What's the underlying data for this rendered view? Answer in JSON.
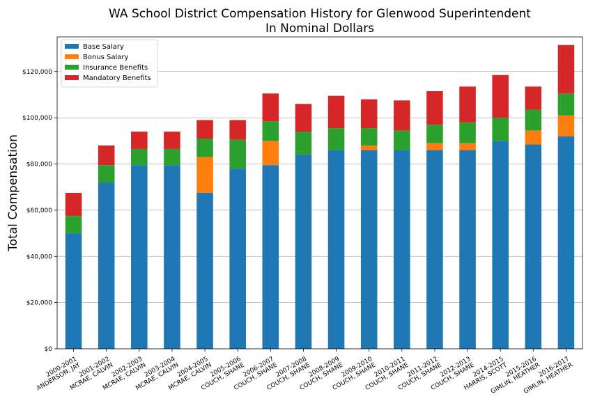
{
  "chart_data": {
    "type": "bar",
    "stacked": true,
    "title": "WA School District Compensation History for Glenwood Superintendent",
    "subtitle": "In Nominal Dollars",
    "xlabel": "",
    "ylabel": "Total Compensation",
    "ylim": [
      0,
      135000
    ],
    "yticks": [
      0,
      20000,
      40000,
      60000,
      80000,
      100000,
      120000
    ],
    "ytick_labels": [
      "$0",
      "$20,000",
      "$40,000",
      "$60,000",
      "$80,000",
      "$100,000",
      "$120,000"
    ],
    "grid": "horizontal",
    "legend_position": "top-left",
    "categories": [
      {
        "year": "2000-2001",
        "name": "ANDERSON, JAY"
      },
      {
        "year": "2001-2002",
        "name": "MCRAE, CALVIN"
      },
      {
        "year": "2002-2003",
        "name": "MCRAE, CALVIN"
      },
      {
        "year": "2003-2004",
        "name": "MCRAE, CALVIN"
      },
      {
        "year": "2004-2005",
        "name": "MCRAE, CALVIN"
      },
      {
        "year": "2005-2006",
        "name": "COUCH, SHANE"
      },
      {
        "year": "2006-2007",
        "name": "COUCH, SHANE"
      },
      {
        "year": "2007-2008",
        "name": "COUCH, SHANE"
      },
      {
        "year": "2008-2009",
        "name": "COUCH, SHANE"
      },
      {
        "year": "2009-2010",
        "name": "COUCH, SHANE"
      },
      {
        "year": "2010-2011",
        "name": "COUCH, SHANE"
      },
      {
        "year": "2011-2012",
        "name": "COUCH, SHANE"
      },
      {
        "year": "2012-2013",
        "name": "COUCH, SHANE"
      },
      {
        "year": "2014-2015",
        "name": "HARRIS, SCOTT"
      },
      {
        "year": "2015-2016",
        "name": "GIMLIN, HEATHER"
      },
      {
        "year": "2016-2017",
        "name": "GIMLIN, HEATHER"
      }
    ],
    "series": [
      {
        "name": "Base Salary",
        "color": "#1f77b4",
        "values": [
          50000,
          72000,
          79500,
          79500,
          67500,
          78000,
          79500,
          84000,
          86000,
          86000,
          86000,
          86000,
          86000,
          90000,
          88500,
          92000
        ]
      },
      {
        "name": "Bonus Salary",
        "color": "#ff7f0e",
        "values": [
          0,
          0,
          0,
          0,
          15500,
          0,
          10500,
          0,
          0,
          2000,
          0,
          3000,
          3000,
          0,
          6000,
          9000
        ]
      },
      {
        "name": "Insurance Benefits",
        "color": "#2ca02c",
        "values": [
          7500,
          7500,
          7000,
          7000,
          8000,
          12500,
          8500,
          10000,
          9500,
          7500,
          8500,
          8000,
          9000,
          10000,
          9000,
          9500
        ]
      },
      {
        "name": "Mandatory Benefits",
        "color": "#d62728",
        "values": [
          10000,
          8500,
          7500,
          7500,
          8000,
          8500,
          12000,
          12000,
          14000,
          12500,
          13000,
          14500,
          15500,
          18500,
          10000,
          21000
        ]
      }
    ]
  }
}
